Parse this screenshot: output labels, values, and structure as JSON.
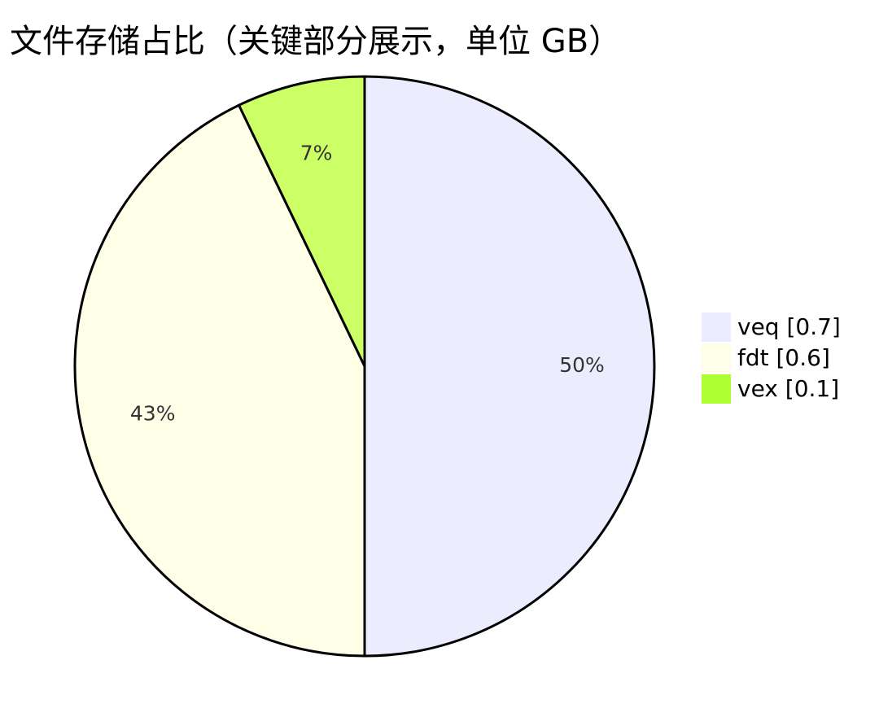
{
  "chart_data": {
    "type": "pie",
    "title": "文件存储占比（关键部分展示，单位 GB）",
    "slices": [
      {
        "label": "veq",
        "value": 0.7,
        "percent_label": "50%",
        "color": "#ececff",
        "legend": "veq [0.7]"
      },
      {
        "label": "fdt",
        "value": 0.6,
        "percent_label": "43%",
        "color": "#ffffe8",
        "legend": "fdt [0.6]"
      },
      {
        "label": "vex",
        "value": 0.1,
        "percent_label": "7%",
        "color": "#ccff66",
        "legend": "vex [0.1]"
      }
    ],
    "start_angle": "12 o'clock",
    "direction": "clockwise",
    "legend_position": "right",
    "stroke_color": "#000000",
    "label_color": "#333333",
    "legend_swatch_colors": [
      "#ececff",
      "#ffffe8",
      "#adff2f"
    ]
  }
}
